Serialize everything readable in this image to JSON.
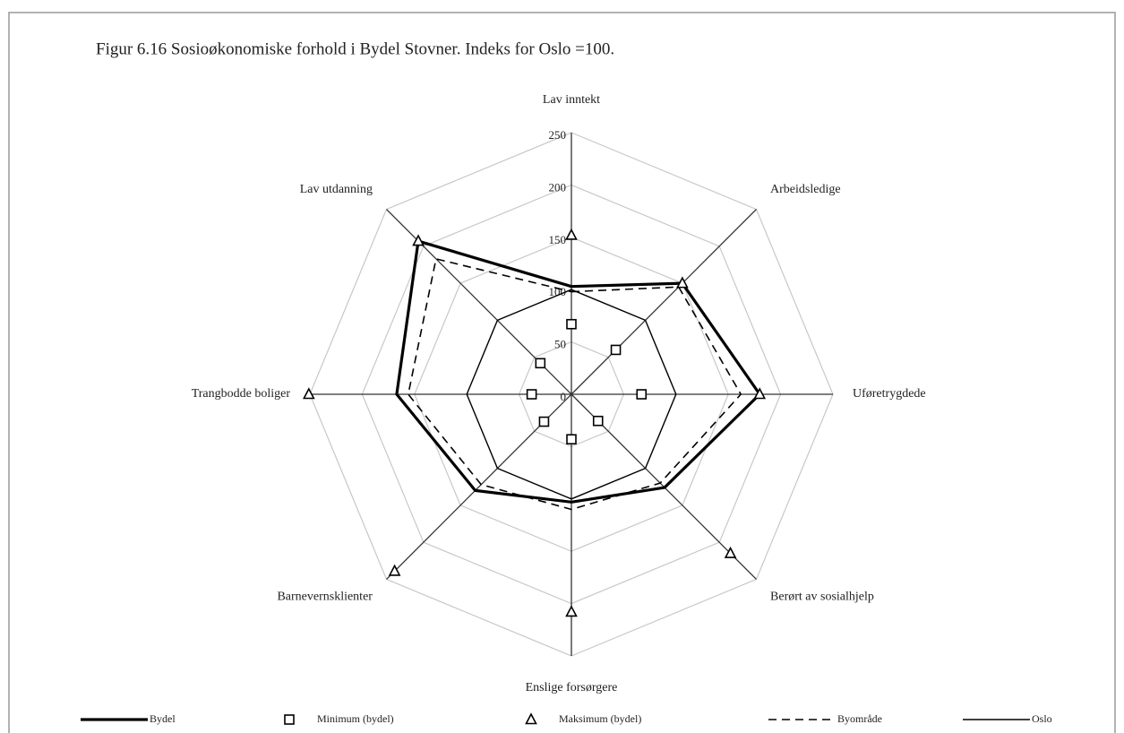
{
  "chart_data": {
    "type": "radar",
    "title": "Figur 6.16 Sosioøkonomiske forhold i Bydel Stovner. Indeks for Oslo =100.",
    "categories": [
      "Lav inntekt",
      "Arbeidsledige",
      "Uføretrygdede",
      "Berørt av sosialhjelp",
      "Enslige forsørgere",
      "Barnevernsklienter",
      "Trangbodde boliger",
      "Lav utdanning"
    ],
    "ylim": [
      0,
      250
    ],
    "yticks": [
      0,
      50,
      100,
      150,
      200,
      250
    ],
    "grid": true,
    "series": [
      {
        "name": "Bydel",
        "color": "#000000",
        "line": "thick",
        "marker": "none",
        "values": [
          103,
          150,
          180,
          126,
          103,
          130,
          167,
          207
        ]
      },
      {
        "name": "Minimum (bydel)",
        "color": "#000000",
        "line": "none",
        "marker": "square",
        "values": [
          67,
          60,
          67,
          36,
          43,
          37,
          38,
          42
        ]
      },
      {
        "name": "Maksimum (bydel)",
        "color": "#000000",
        "line": "none",
        "marker": "triangle",
        "values": [
          152,
          150,
          180,
          215,
          208,
          239,
          251,
          207
        ]
      },
      {
        "name": "Byområde",
        "color": "#000000",
        "line": "dashed",
        "marker": "none",
        "values": [
          98,
          145,
          162,
          120,
          110,
          122,
          156,
          183
        ]
      },
      {
        "name": "Oslo",
        "color": "#000000",
        "line": "thin",
        "marker": "none",
        "values": [
          100,
          100,
          100,
          100,
          100,
          100,
          100,
          100
        ]
      }
    ]
  }
}
